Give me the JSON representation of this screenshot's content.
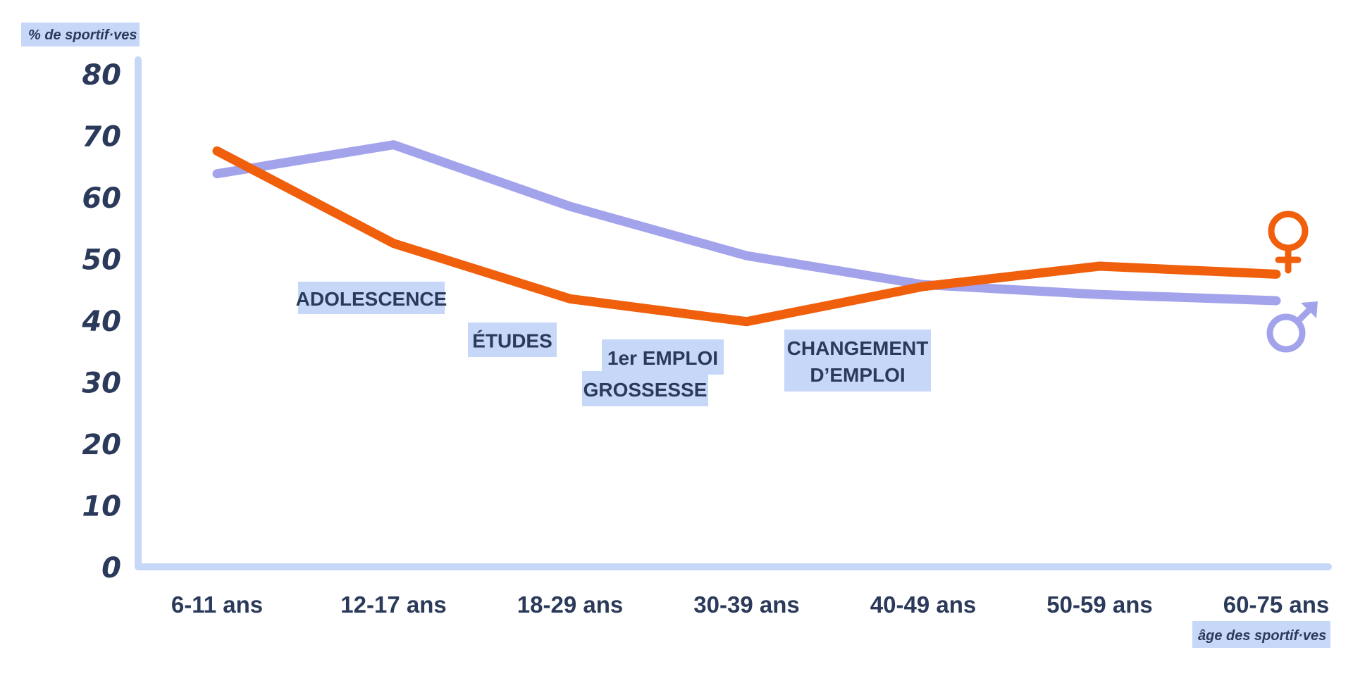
{
  "chart_data": {
    "type": "line",
    "ylabel": "% de sportif·ves",
    "xlabel": "âge des sportif·ves",
    "categories": [
      "6-11 ans",
      "12-17 ans",
      "18-29 ans",
      "30-39 ans",
      "40-49 ans",
      "50-59 ans",
      "60-75 ans"
    ],
    "ylim": [
      0,
      80
    ],
    "yticks": [
      0,
      10,
      20,
      30,
      40,
      50,
      60,
      70,
      80
    ],
    "grid": false,
    "series": [
      {
        "id": "women",
        "symbol": "female-symbol-icon",
        "color": "#f05f0b",
        "values": [
          67.5,
          52.5,
          43.5,
          39.8,
          45.5,
          48.8,
          47.5
        ]
      },
      {
        "id": "men",
        "symbol": "male-symbol-icon",
        "color": "#a3a3ec",
        "values": [
          63.8,
          68.5,
          58.5,
          50.5,
          45.8,
          44.2,
          43.2
        ]
      }
    ],
    "annotations": [
      {
        "lines": [
          "ADOLESCENCE"
        ]
      },
      {
        "lines": [
          "ÉTUDES"
        ]
      },
      {
        "lines": [
          "1er EMPLOI"
        ]
      },
      {
        "lines": [
          "GROSSESSE"
        ]
      },
      {
        "lines": [
          "CHANGEMENT",
          "D’EMPLOI"
        ]
      }
    ],
    "colors": {
      "axis": "#c7d7f8",
      "label_bg": "#c7d7f8",
      "text": "#2b3a5a"
    }
  }
}
